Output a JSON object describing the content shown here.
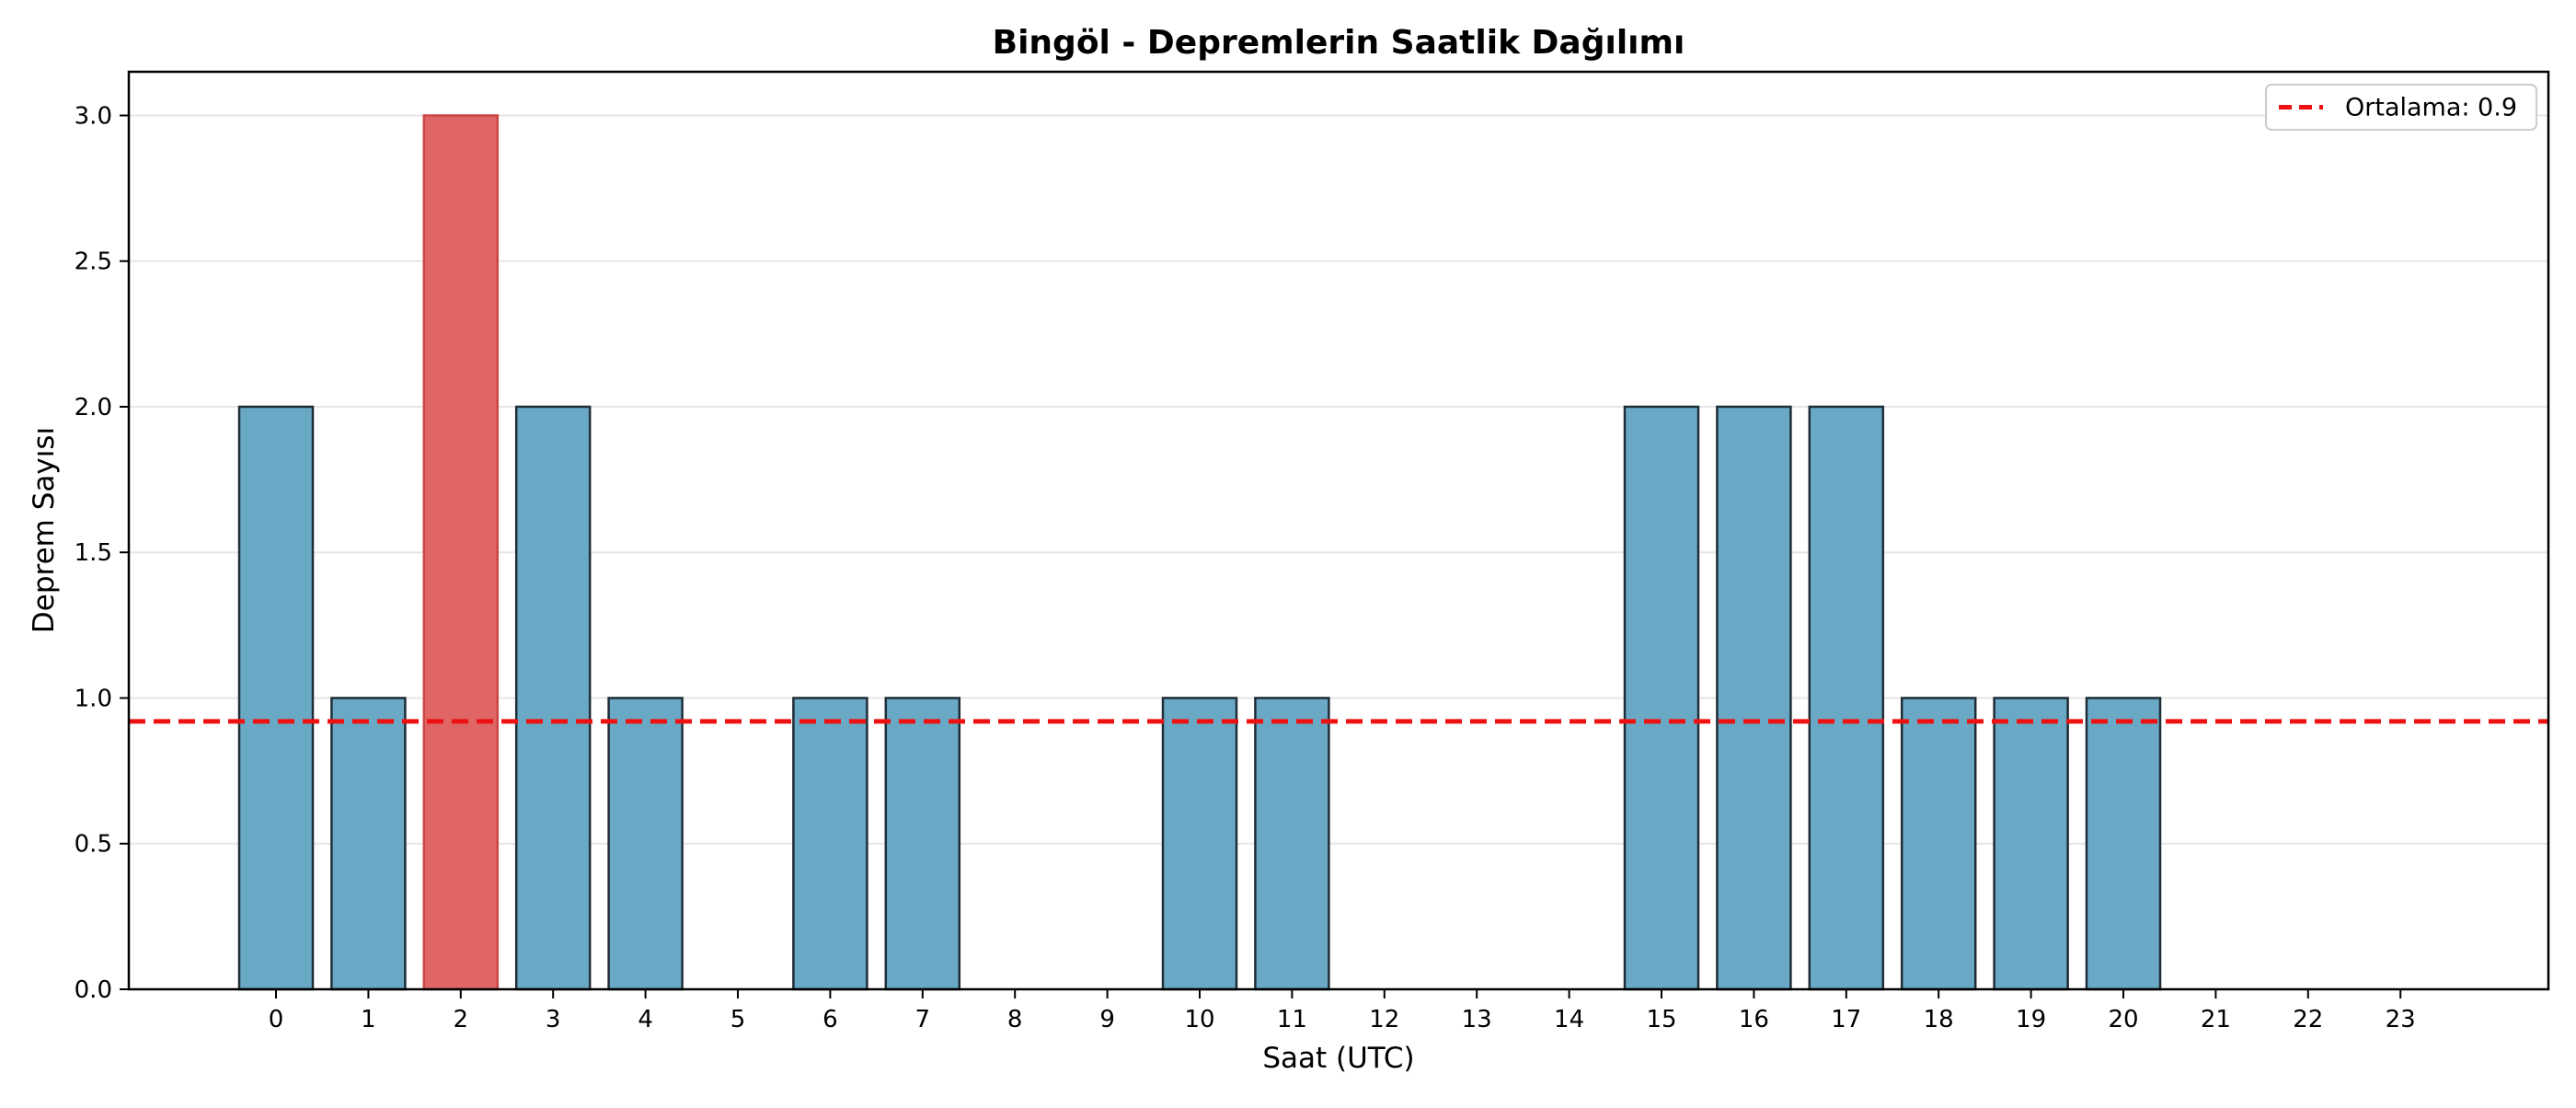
{
  "chart_data": {
    "type": "bar",
    "title": "Bingöl - Depremlerin Saatlik Dağılımı",
    "xlabel": "Saat (UTC)",
    "ylabel": "Deprem Sayısı",
    "categories": [
      "0",
      "1",
      "2",
      "3",
      "4",
      "5",
      "6",
      "7",
      "8",
      "9",
      "10",
      "11",
      "12",
      "13",
      "14",
      "15",
      "16",
      "17",
      "18",
      "19",
      "20",
      "21",
      "22",
      "23"
    ],
    "values": [
      2,
      1,
      3,
      2,
      1,
      0,
      1,
      1,
      0,
      0,
      1,
      1,
      0,
      0,
      0,
      2,
      2,
      2,
      1,
      1,
      1,
      0,
      0,
      0
    ],
    "highlight_index": 2,
    "ylim": [
      0,
      3.15
    ],
    "yticks": [
      "0.0",
      "0.5",
      "1.0",
      "1.5",
      "2.0",
      "2.5",
      "3.0"
    ],
    "grid": "horizontal",
    "mean_line": {
      "value": 0.92,
      "label": "Ortalama: 0.9",
      "style": "dashed"
    },
    "legend_position": "top-right",
    "colors": {
      "bar": "#6aa9c5",
      "bar_highlight": "#e06666",
      "bar_edge": "#1f2d36",
      "mean_line": "#ee1111",
      "grid": "#e6e6e6"
    }
  }
}
